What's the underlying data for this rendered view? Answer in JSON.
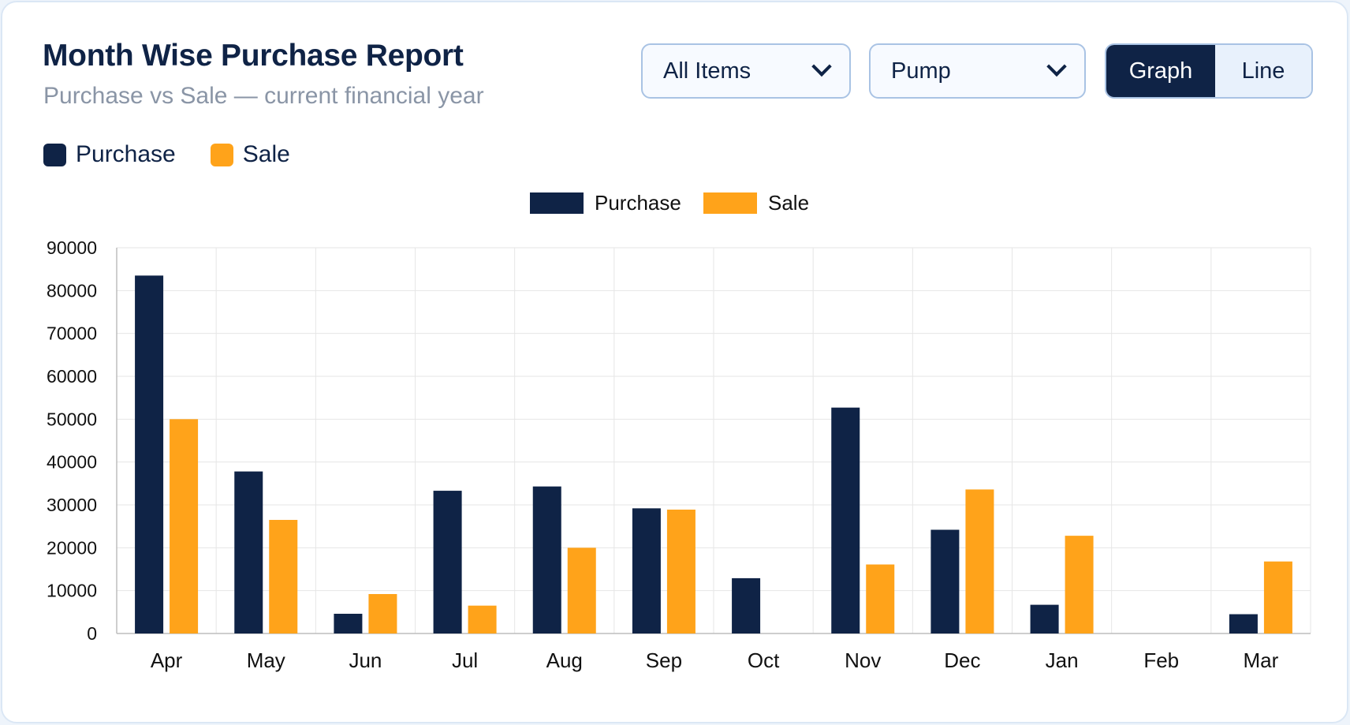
{
  "header": {
    "title": "Month Wise Purchase Report",
    "subtitle": "Purchase vs Sale — current financial year"
  },
  "filters": {
    "items_select": "All Items",
    "category_select": "Pump",
    "view_toggle": {
      "graph_label": "Graph",
      "line_label": "Line",
      "active": "Graph"
    }
  },
  "legend": [
    {
      "label": "Purchase",
      "color": "#0f2346"
    },
    {
      "label": "Sale",
      "color": "#ffa31a"
    }
  ],
  "chart_data": {
    "type": "bar",
    "categories": [
      "Apr",
      "May",
      "Jun",
      "Jul",
      "Aug",
      "Sep",
      "Oct",
      "Nov",
      "Dec",
      "Jan",
      "Feb",
      "Mar"
    ],
    "series": [
      {
        "name": "Purchase",
        "color": "#0f2346",
        "values": [
          83500,
          37800,
          4600,
          33300,
          34300,
          29200,
          12900,
          52700,
          24200,
          6700,
          0,
          4500
        ]
      },
      {
        "name": "Sale",
        "color": "#ffa31a",
        "values": [
          50000,
          26500,
          9200,
          6500,
          20000,
          28900,
          0,
          16100,
          33600,
          22800,
          0,
          16800
        ]
      }
    ],
    "y_ticks": [
      0,
      10000,
      20000,
      30000,
      40000,
      50000,
      60000,
      70000,
      80000,
      90000
    ],
    "ylim": [
      0,
      90000
    ],
    "grid": true,
    "legend_position": "top-center"
  }
}
